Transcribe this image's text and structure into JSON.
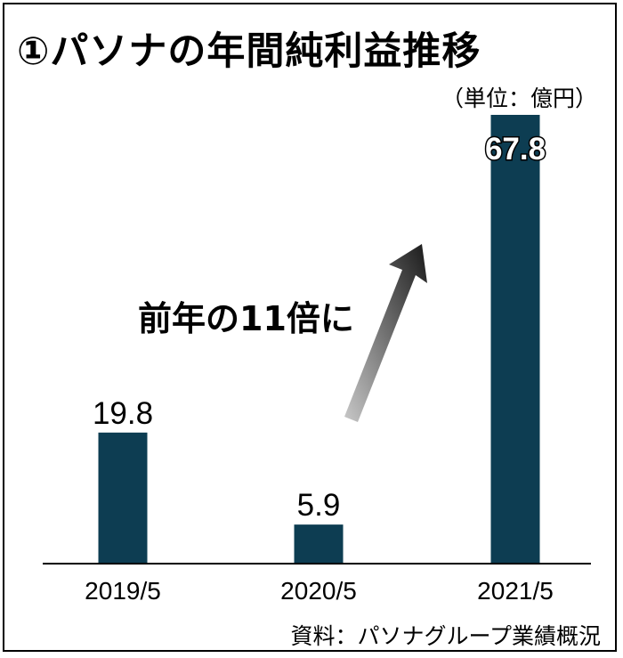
{
  "title": "①パソナの年間純利益推移",
  "unit_label": "（単位：億円）",
  "source": "資料：パソナグループ業績概況",
  "annotation": "前年の11倍に",
  "chart_data": {
    "type": "bar",
    "title": "①パソナの年間純利益推移",
    "categories": [
      "2019/5",
      "2020/5",
      "2021/5"
    ],
    "values": [
      19.8,
      5.9,
      67.8
    ],
    "value_labels": [
      "19.8",
      "5.9",
      "67.8"
    ],
    "xlabel": "",
    "ylabel": "",
    "unit": "億円",
    "ylim": [
      0,
      67.8
    ],
    "grid": false,
    "legend": "none",
    "bar_color": "#0d3d52"
  }
}
